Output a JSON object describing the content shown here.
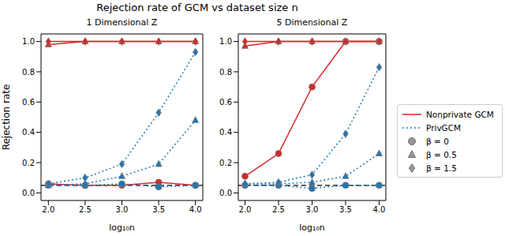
{
  "title": "Rejection rate of GCM vs dataset size n",
  "legend": "right",
  "chart_data": [
    {
      "type": "line",
      "title": "1 Dimensional Z",
      "x_label": "log₁₀n",
      "y_label": "Rejection rate",
      "x": [
        2.0,
        2.5,
        3.0,
        3.5,
        4.0
      ],
      "xlim": [
        1.9,
        4.1
      ],
      "xticks": [
        {
          "value": 2.0,
          "label": "2.0"
        },
        {
          "value": 2.5,
          "label": "2.5"
        },
        {
          "value": 3.0,
          "label": "3.0"
        },
        {
          "value": 3.5,
          "label": "3.5"
        },
        {
          "value": 4.0,
          "label": "4.0"
        }
      ],
      "ylim": [
        -0.05,
        1.05
      ],
      "yticks": [
        {
          "value": 0,
          "label": "0.0"
        },
        {
          "value": 0.2,
          "label": "0.2"
        },
        {
          "value": 0.4,
          "label": "0.4"
        },
        {
          "value": 0.6,
          "label": "0.6"
        },
        {
          "value": 0.8,
          "label": "0.8"
        },
        {
          "value": 1.0,
          "label": "1.0"
        }
      ],
      "hline": 0.05,
      "series": [
        {
          "name": "Nonprivate GCM",
          "group": "β = 0",
          "color": "#d62728",
          "line_style": "solid",
          "marker": "circle",
          "values": [
            0.06,
            0.05,
            0.05,
            0.07,
            0.05
          ]
        },
        {
          "name": "Nonprivate GCM",
          "group": "β = 0.5",
          "color": "#d62728",
          "line_style": "solid",
          "marker": "triangle",
          "values": [
            0.98,
            1.0,
            1.0,
            1.0,
            1.0
          ]
        },
        {
          "name": "Nonprivate GCM",
          "group": "β = 1.5",
          "color": "#d62728",
          "line_style": "solid",
          "marker": "diamond",
          "values": [
            1.0,
            1.0,
            1.0,
            1.0,
            1.0
          ]
        },
        {
          "name": "PrivGCM",
          "group": "β = 0",
          "color": "#1f77b4",
          "line_style": "dotted",
          "marker": "circle",
          "values": [
            0.05,
            0.05,
            0.06,
            0.04,
            0.05
          ]
        },
        {
          "name": "PrivGCM",
          "group": "β = 0.5",
          "color": "#1f77b4",
          "line_style": "dotted",
          "marker": "triangle",
          "values": [
            0.05,
            0.06,
            0.11,
            0.19,
            0.48
          ]
        },
        {
          "name": "PrivGCM",
          "group": "β = 1.5",
          "color": "#1f77b4",
          "line_style": "dotted",
          "marker": "diamond",
          "values": [
            0.06,
            0.1,
            0.19,
            0.53,
            0.93
          ]
        }
      ]
    },
    {
      "type": "line",
      "title": "5 Dimensional Z",
      "x_label": "log₁₀n",
      "x": [
        2.0,
        2.5,
        3.0,
        3.5,
        4.0
      ],
      "xlim": [
        1.9,
        4.1
      ],
      "xticks": [
        {
          "value": 2.0,
          "label": "2.0"
        },
        {
          "value": 2.5,
          "label": "2.5"
        },
        {
          "value": 3.0,
          "label": "3.0"
        },
        {
          "value": 3.5,
          "label": "3.5"
        },
        {
          "value": 4.0,
          "label": "4.0"
        }
      ],
      "ylim": [
        -0.05,
        1.05
      ],
      "yticks": [
        {
          "value": 0,
          "label": "0.0"
        },
        {
          "value": 0.2,
          "label": "0.2"
        },
        {
          "value": 0.4,
          "label": "0.4"
        },
        {
          "value": 0.6,
          "label": "0.6"
        },
        {
          "value": 0.8,
          "label": "0.8"
        },
        {
          "value": 1.0,
          "label": "1.0"
        }
      ],
      "hline": 0.05,
      "series": [
        {
          "name": "Nonprivate GCM",
          "group": "β = 0",
          "color": "#d62728",
          "line_style": "solid",
          "marker": "circle",
          "values": [
            0.11,
            0.26,
            0.7,
            1.0,
            1.0
          ]
        },
        {
          "name": "Nonprivate GCM",
          "group": "β = 0.5",
          "color": "#d62728",
          "line_style": "solid",
          "marker": "triangle",
          "values": [
            0.97,
            1.0,
            1.0,
            1.0,
            1.0
          ]
        },
        {
          "name": "Nonprivate GCM",
          "group": "β = 1.5",
          "color": "#d62728",
          "line_style": "solid",
          "marker": "diamond",
          "values": [
            1.0,
            1.0,
            1.0,
            1.0,
            1.0
          ]
        },
        {
          "name": "PrivGCM",
          "group": "β = 0",
          "color": "#1f77b4",
          "line_style": "dotted",
          "marker": "circle",
          "values": [
            0.05,
            0.05,
            0.03,
            0.05,
            0.05
          ]
        },
        {
          "name": "PrivGCM",
          "group": "β = 0.5",
          "color": "#1f77b4",
          "line_style": "dotted",
          "marker": "triangle",
          "values": [
            0.06,
            0.06,
            0.07,
            0.11,
            0.26
          ]
        },
        {
          "name": "PrivGCM",
          "group": "β = 1.5",
          "color": "#1f77b4",
          "line_style": "dotted",
          "marker": "diamond",
          "values": [
            0.06,
            0.07,
            0.12,
            0.39,
            0.83
          ]
        }
      ]
    }
  ]
}
